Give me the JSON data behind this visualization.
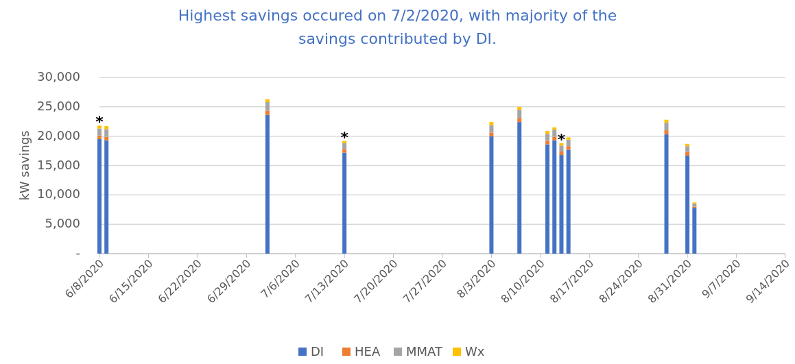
{
  "chart_data": {
    "type": "bar",
    "stacked": true,
    "title": "Highest savings occured on 7/2/2020, with majority of the savings contributed by DI.",
    "ylabel": "kW savings",
    "x": [
      "2020-06-08",
      "2020-06-09",
      "2020-07-02",
      "2020-07-13",
      "2020-08-03",
      "2020-08-07",
      "2020-08-11",
      "2020-08-12",
      "2020-08-13",
      "2020-08-14",
      "2020-08-28",
      "2020-08-31",
      "2020-09-01"
    ],
    "series": [
      {
        "name": "DI",
        "color": "#4472c4",
        "values": [
          19500,
          19300,
          23600,
          17200,
          20000,
          22400,
          18600,
          19300,
          16800,
          17700,
          20300,
          16700,
          7800
        ]
      },
      {
        "name": "HEA",
        "color": "#ed7d31",
        "values": [
          600,
          600,
          700,
          600,
          600,
          700,
          600,
          600,
          600,
          600,
          700,
          600,
          200
        ]
      },
      {
        "name": "MMAT",
        "color": "#a5a5a5",
        "values": [
          1200,
          1300,
          1500,
          1000,
          1300,
          1400,
          1200,
          1200,
          1000,
          1100,
          1300,
          1000,
          500
        ]
      },
      {
        "name": "Wx",
        "color": "#ffc000",
        "values": [
          500,
          500,
          500,
          400,
          500,
          500,
          500,
          400,
          400,
          400,
          500,
          400,
          200
        ]
      }
    ],
    "xlim": [
      "2020-06-08",
      "2020-09-14"
    ],
    "xticks": [
      {
        "value": "2020-06-08",
        "label": "6/8/2020"
      },
      {
        "value": "2020-06-15",
        "label": "6/15/2020"
      },
      {
        "value": "2020-06-22",
        "label": "6/22/2020"
      },
      {
        "value": "2020-06-29",
        "label": "6/29/2020"
      },
      {
        "value": "2020-07-06",
        "label": "7/6/2020"
      },
      {
        "value": "2020-07-13",
        "label": "7/13/2020"
      },
      {
        "value": "2020-07-20",
        "label": "7/20/2020"
      },
      {
        "value": "2020-07-27",
        "label": "7/27/2020"
      },
      {
        "value": "2020-08-03",
        "label": "8/3/2020"
      },
      {
        "value": "2020-08-10",
        "label": "8/10/2020"
      },
      {
        "value": "2020-08-17",
        "label": "8/17/2020"
      },
      {
        "value": "2020-08-24",
        "label": "8/24/2020"
      },
      {
        "value": "2020-08-31",
        "label": "8/31/2020"
      },
      {
        "value": "2020-09-07",
        "label": "9/7/2020"
      },
      {
        "value": "2020-09-14",
        "label": "9/14/2020"
      }
    ],
    "ylim": [
      0,
      30000
    ],
    "yticks": [
      {
        "value": 0,
        "label": "-"
      },
      {
        "value": 5000,
        "label": "5,000"
      },
      {
        "value": 10000,
        "label": "10,000"
      },
      {
        "value": 15000,
        "label": "15,000"
      },
      {
        "value": 20000,
        "label": "20,000"
      },
      {
        "value": 25000,
        "label": "25,000"
      },
      {
        "value": 30000,
        "label": "30,000"
      }
    ],
    "grid": "y",
    "legend": "bottom",
    "annotations": [
      {
        "text": "*",
        "x": "2020-06-08",
        "y": 21800
      },
      {
        "text": "*",
        "x": "2020-07-13",
        "y": 19200
      },
      {
        "text": "*",
        "x": "2020-08-13",
        "y": 18800
      }
    ]
  }
}
